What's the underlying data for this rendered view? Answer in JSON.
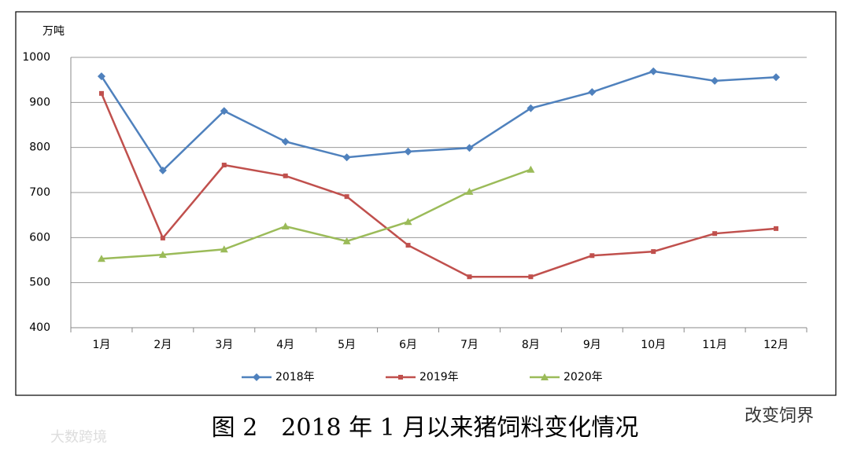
{
  "chart_data": {
    "type": "line",
    "y_label": "万吨",
    "caption": "图 2　2018 年 1 月以来猪饲料变化情况",
    "watermarks": [
      "改变饲界",
      "大数跨境"
    ],
    "categories": [
      "1月",
      "2月",
      "3月",
      "4月",
      "5月",
      "6月",
      "7月",
      "8月",
      "9月",
      "10月",
      "11月",
      "12月"
    ],
    "series": [
      {
        "name": "2018年",
        "color": "#4f81bd",
        "marker": "diamond",
        "values": [
          958,
          749,
          881,
          813,
          778,
          791,
          799,
          887,
          923,
          969,
          948,
          956
        ]
      },
      {
        "name": "2019年",
        "color": "#c0504d",
        "marker": "square",
        "values": [
          920,
          599,
          761,
          737,
          691,
          583,
          513,
          513,
          560,
          569,
          609,
          620
        ]
      },
      {
        "name": "2020年",
        "color": "#9bbb59",
        "marker": "triangle",
        "values": [
          553,
          562,
          574,
          625,
          592,
          635,
          702,
          751,
          null,
          null,
          null,
          null
        ]
      }
    ],
    "ylim": [
      400,
      1000
    ],
    "yticks": [
      400,
      500,
      600,
      700,
      800,
      900,
      1000
    ],
    "grid": true,
    "legend": "bottom"
  }
}
